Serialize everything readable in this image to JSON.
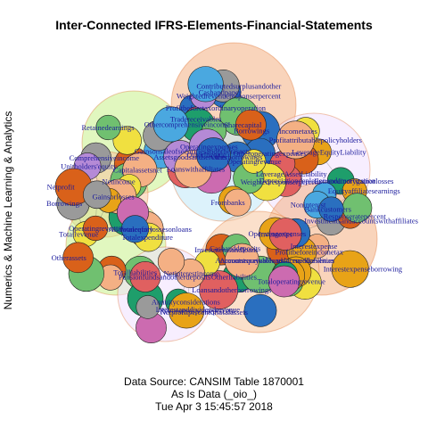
{
  "title": "Inter-Connected IFRS-Elements-Financial-Statements",
  "ylabel": "Numerics & Machine Learning & Analytics",
  "footer": {
    "line1": "Data Source: CANSIM Table 1870001",
    "line2": "As Is Data (_oio_)",
    "line3": "Tue Apr  3 15:45:57 2018"
  },
  "palette": [
    "#e8a317",
    "#d9611a",
    "#2a6fbf",
    "#1e9e6b",
    "#f0e040",
    "#9a9a9a",
    "#cc6bb0",
    "#4aa8e0",
    "#f4b084",
    "#b58ad6",
    "#e06060",
    "#70c070"
  ],
  "node_labels": [
    "Profitbeforetaxordinaryoperation",
    "Tradereceivables",
    "Cashandpaper",
    "Contributedsurplusandother",
    "Borrowings",
    "Otheroperatingexpenses",
    "Weightedrevenueresponserpercent",
    "Otherborrowings",
    "Sharecapital",
    "Gainsonsaleofsecuritiesandotherassets",
    "Comprehensiveincome",
    "Netincome",
    "Othercomprehensiveincome",
    "Capitalassetsnet",
    "Retainedearnings",
    "Borrowings",
    "Gainsorlosses",
    "Unitholders'equity",
    "Netprofit",
    "Extraordinarygainorlosses",
    "LeverageEquityLiability",
    "LeverageAssetLiability",
    "Incometaxes",
    "Equityaffiliatesearnings",
    "Depreciationdepletionandamortization",
    "Profitattributablepolicyholders",
    "Weightedresponserpercent",
    "Assetsgoodsandservices",
    "Operatingexpenses",
    "Loanswithaffiliates",
    "Otherincome",
    "Operatingrevenue",
    "Frombanks",
    "Investmentsandaccountswithaffiliates",
    "Responseratepercent",
    "Interestexpense",
    "Profitbeforeincometax",
    "Interestexpenseborrowing",
    "Noninterest",
    "Bankcustomers",
    "Totalliabilities",
    "Totalequity",
    "Totalexpenditure",
    "Totalrevenue",
    "Operatingrevenue",
    "Otherassets",
    "Allowanceforlossesonloans",
    "Operatingexpenses",
    "Otherliabilities",
    "Investmentsandloans",
    "Accountspayableandaccruedliabilities",
    "Loansandotherborrowings",
    "Inventories",
    "Cashanddeposits",
    "Accountsreceivableandaccruedrevenue",
    "Totaloperatingrevenue",
    "Annuityconsiderations",
    "Interestanddividendrevenue",
    "Netinterestincome",
    "Pensionfundsandotherdeposits",
    "Netprofitpercentoftotalassets",
    "Revenueresponsepercent"
  ]
}
